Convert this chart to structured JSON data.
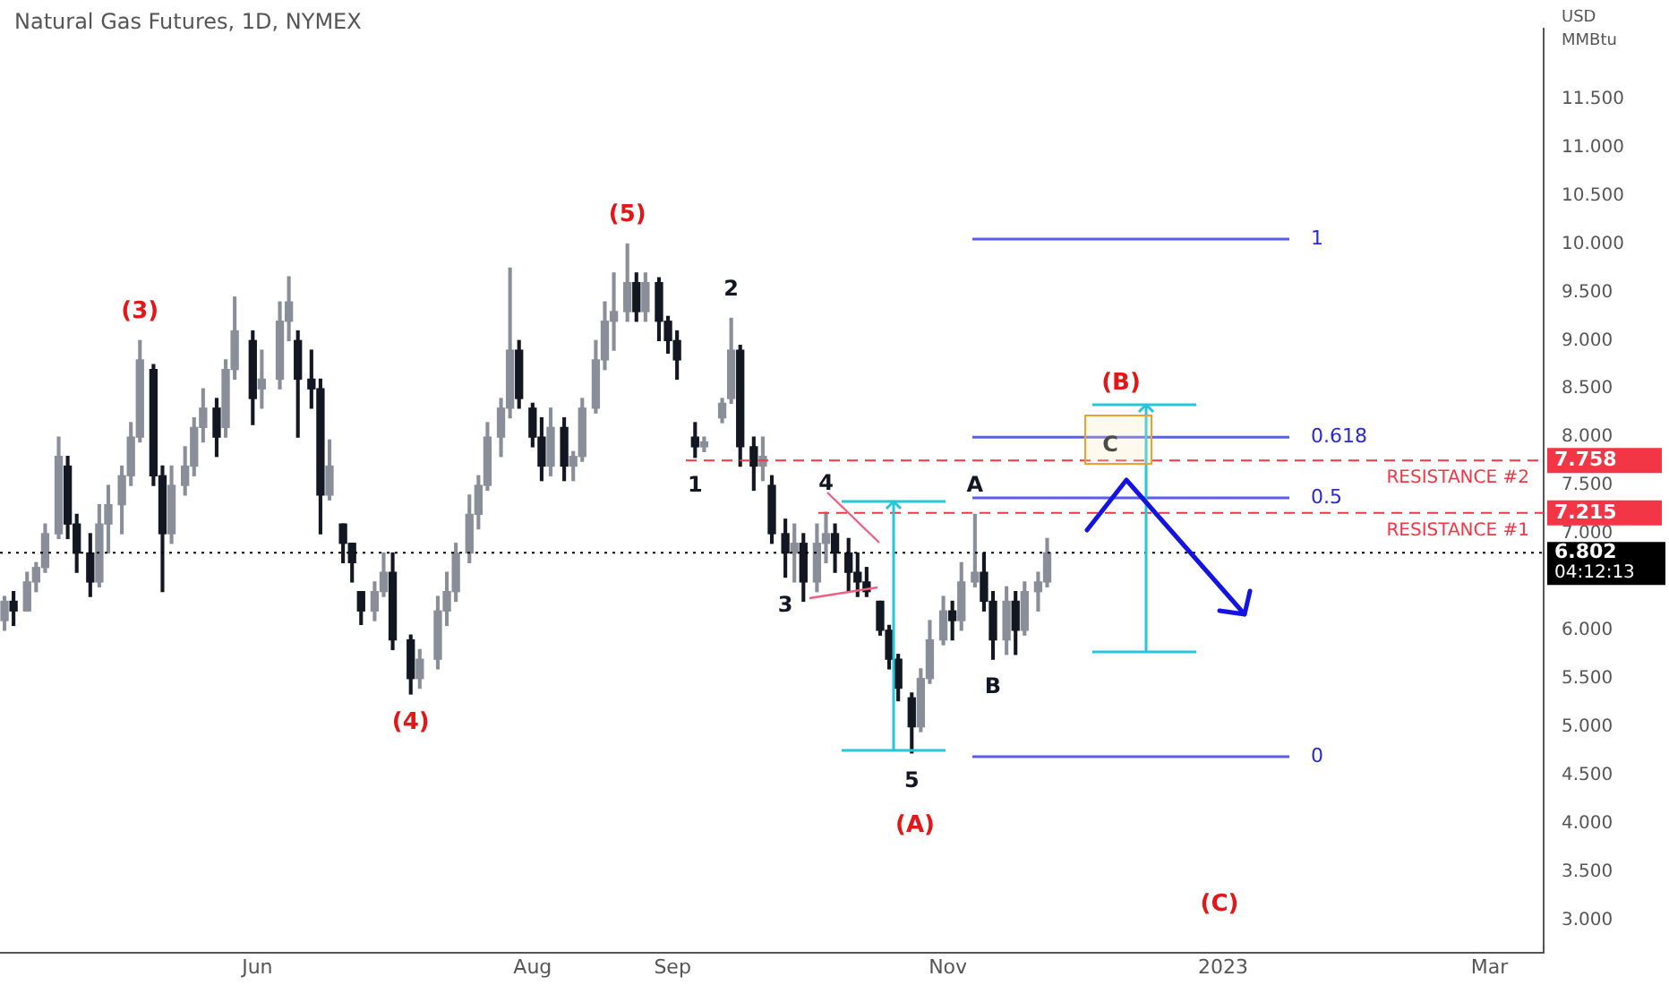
{
  "chart_data": {
    "type": "candlestick",
    "title": "Natural Gas Futures, 1D, NYMEX",
    "ylabel": "USD MMBtu",
    "x": [
      "2022-04-06",
      "2022-04-08",
      "2022-04-11",
      "2022-04-13",
      "2022-04-15",
      "2022-04-18",
      "2022-04-20",
      "2022-04-22",
      "2022-04-25",
      "2022-04-27",
      "2022-04-29",
      "2022-05-02",
      "2022-05-04",
      "2022-05-06",
      "2022-05-09",
      "2022-05-11",
      "2022-05-13",
      "2022-05-16",
      "2022-05-18",
      "2022-05-20",
      "2022-05-23",
      "2022-05-25",
      "2022-05-27",
      "2022-05-31",
      "2022-06-02",
      "2022-06-06",
      "2022-06-08",
      "2022-06-10",
      "2022-06-13",
      "2022-06-15",
      "2022-06-17",
      "2022-06-20",
      "2022-06-22",
      "2022-06-24",
      "2022-06-27",
      "2022-06-29",
      "2022-07-01",
      "2022-07-05",
      "2022-07-07",
      "2022-07-11",
      "2022-07-13",
      "2022-07-15",
      "2022-07-18",
      "2022-07-20",
      "2022-07-22",
      "2022-07-25",
      "2022-07-27",
      "2022-07-29",
      "2022-08-01",
      "2022-08-03",
      "2022-08-05",
      "2022-08-08",
      "2022-08-10",
      "2022-08-12",
      "2022-08-15",
      "2022-08-17",
      "2022-08-19",
      "2022-08-22",
      "2022-08-24",
      "2022-08-26",
      "2022-08-29",
      "2022-08-31",
      "2022-09-02",
      "2022-09-06",
      "2022-09-08",
      "2022-09-12",
      "2022-09-14",
      "2022-09-16",
      "2022-09-19",
      "2022-09-21",
      "2022-09-23",
      "2022-09-26",
      "2022-09-28",
      "2022-09-30",
      "2022-10-03",
      "2022-10-05",
      "2022-10-07",
      "2022-10-10",
      "2022-10-12",
      "2022-10-14",
      "2022-10-17",
      "2022-10-19",
      "2022-10-21",
      "2022-10-24",
      "2022-10-26",
      "2022-10-28",
      "2022-10-31",
      "2022-11-02",
      "2022-11-04",
      "2022-11-07",
      "2022-11-09",
      "2022-11-11",
      "2022-11-14",
      "2022-11-16",
      "2022-11-18",
      "2022-11-21",
      "2022-11-23"
    ],
    "ohlc": [
      [
        6.1,
        6.35,
        6.0,
        6.3
      ],
      [
        6.3,
        6.4,
        6.05,
        6.2
      ],
      [
        6.2,
        6.6,
        6.2,
        6.5
      ],
      [
        6.5,
        6.7,
        6.4,
        6.65
      ],
      [
        6.65,
        7.1,
        6.6,
        7.0
      ],
      [
        7.0,
        8.0,
        6.95,
        7.8
      ],
      [
        7.7,
        7.8,
        6.95,
        7.1
      ],
      [
        7.1,
        7.2,
        6.6,
        6.8
      ],
      [
        6.8,
        7.0,
        6.35,
        6.5
      ],
      [
        6.5,
        7.3,
        6.45,
        7.1
      ],
      [
        7.1,
        7.5,
        6.8,
        7.3
      ],
      [
        7.3,
        7.7,
        7.0,
        7.6
      ],
      [
        7.6,
        8.15,
        7.5,
        8.0
      ],
      [
        8.0,
        9.0,
        7.95,
        8.8
      ],
      [
        8.7,
        8.75,
        7.5,
        7.6
      ],
      [
        7.6,
        7.7,
        6.4,
        7.0
      ],
      [
        7.0,
        7.7,
        6.9,
        7.5
      ],
      [
        7.5,
        7.9,
        7.4,
        7.7
      ],
      [
        7.7,
        8.2,
        7.6,
        8.1
      ],
      [
        8.1,
        8.5,
        7.95,
        8.3
      ],
      [
        8.3,
        8.4,
        7.8,
        8.0
      ],
      [
        8.1,
        8.8,
        8.0,
        8.7
      ],
      [
        8.7,
        9.45,
        8.6,
        9.1
      ],
      [
        9.0,
        9.1,
        8.13,
        8.4
      ],
      [
        8.5,
        8.9,
        8.3,
        8.6
      ],
      [
        8.6,
        9.4,
        8.5,
        9.2
      ],
      [
        9.2,
        9.66,
        9.0,
        9.4
      ],
      [
        9.0,
        9.1,
        8.0,
        8.6
      ],
      [
        8.6,
        8.9,
        8.3,
        8.5
      ],
      [
        8.5,
        8.6,
        7.0,
        7.4
      ],
      [
        7.4,
        7.97,
        7.35,
        7.7
      ],
      [
        7.1,
        7.1,
        6.7,
        6.9
      ],
      [
        6.9,
        6.9,
        6.5,
        6.7
      ],
      [
        6.4,
        6.4,
        6.06,
        6.2
      ],
      [
        6.2,
        6.5,
        6.1,
        6.4
      ],
      [
        6.4,
        6.8,
        6.35,
        6.6
      ],
      [
        6.6,
        6.8,
        5.8,
        5.9
      ],
      [
        5.9,
        5.95,
        5.34,
        5.5
      ],
      [
        5.5,
        5.8,
        5.4,
        5.7
      ],
      [
        5.7,
        6.35,
        5.6,
        6.2
      ],
      [
        6.2,
        6.6,
        6.05,
        6.4
      ],
      [
        6.4,
        6.9,
        6.3,
        6.8
      ],
      [
        6.8,
        7.4,
        6.7,
        7.2
      ],
      [
        7.2,
        7.6,
        7.05,
        7.5
      ],
      [
        7.5,
        8.15,
        7.45,
        8.0
      ],
      [
        8.0,
        8.4,
        7.8,
        8.3
      ],
      [
        8.3,
        9.75,
        8.2,
        8.9
      ],
      [
        8.9,
        9.0,
        8.3,
        8.4
      ],
      [
        8.3,
        8.35,
        7.9,
        8.0
      ],
      [
        8.0,
        8.2,
        7.55,
        7.7
      ],
      [
        7.7,
        8.3,
        7.6,
        8.1
      ],
      [
        8.1,
        8.2,
        7.55,
        7.7
      ],
      [
        7.7,
        7.85,
        7.55,
        7.8
      ],
      [
        7.8,
        8.4,
        7.75,
        8.3
      ],
      [
        8.3,
        9.0,
        8.25,
        8.8
      ],
      [
        8.8,
        9.4,
        8.7,
        9.2
      ],
      [
        9.2,
        9.7,
        8.9,
        9.3
      ],
      [
        9.3,
        10.0,
        9.2,
        9.6
      ],
      [
        9.6,
        9.7,
        9.2,
        9.3
      ],
      [
        9.3,
        9.7,
        9.2,
        9.6
      ],
      [
        9.6,
        9.65,
        9.0,
        9.2
      ],
      [
        9.2,
        9.25,
        8.87,
        9.0
      ],
      [
        9.0,
        9.1,
        8.6,
        8.8
      ],
      [
        8.0,
        8.15,
        7.79,
        7.9
      ],
      [
        7.9,
        8.0,
        7.85,
        7.95
      ],
      [
        8.2,
        8.4,
        8.15,
        8.35
      ],
      [
        8.4,
        9.23,
        8.35,
        8.9
      ],
      [
        8.9,
        8.95,
        7.7,
        7.9
      ],
      [
        7.9,
        8.0,
        7.45,
        7.7
      ],
      [
        7.7,
        8.0,
        7.55,
        7.8
      ],
      [
        7.5,
        7.6,
        6.9,
        7.0
      ],
      [
        7.0,
        7.15,
        6.55,
        6.8
      ],
      [
        6.8,
        7.1,
        6.5,
        6.9
      ],
      [
        6.9,
        7.0,
        6.3,
        6.5
      ],
      [
        6.5,
        7.1,
        6.4,
        6.9
      ],
      [
        6.9,
        7.22,
        6.7,
        7.0
      ],
      [
        7.0,
        7.1,
        6.6,
        6.8
      ],
      [
        6.8,
        6.95,
        6.4,
        6.6
      ],
      [
        6.6,
        6.8,
        6.35,
        6.5
      ],
      [
        6.5,
        6.65,
        6.35,
        6.4
      ],
      [
        6.3,
        6.3,
        5.95,
        6.0
      ],
      [
        6.0,
        6.05,
        5.6,
        5.7
      ],
      [
        5.7,
        5.75,
        5.27,
        5.4
      ],
      [
        5.3,
        5.35,
        4.73,
        5.0
      ],
      [
        5.0,
        5.6,
        4.95,
        5.5
      ],
      [
        5.5,
        6.1,
        5.45,
        5.9
      ],
      [
        5.9,
        6.35,
        5.85,
        6.2
      ],
      [
        6.2,
        6.3,
        5.9,
        6.1
      ],
      [
        6.1,
        6.7,
        6.0,
        6.5
      ],
      [
        6.5,
        7.2,
        6.45,
        6.6
      ],
      [
        6.6,
        6.8,
        6.2,
        6.3
      ],
      [
        6.3,
        6.4,
        5.7,
        5.9
      ],
      [
        5.9,
        6.45,
        5.75,
        6.3
      ],
      [
        6.3,
        6.4,
        5.75,
        6.0
      ],
      [
        6.0,
        6.5,
        5.95,
        6.4
      ],
      [
        6.4,
        6.6,
        6.2,
        6.5
      ],
      [
        6.5,
        6.95,
        6.45,
        6.802
      ]
    ],
    "colors": [
      "#8a8e99",
      "#131722",
      "#8a8e99",
      "#8a8e99",
      "#8a8e99",
      "#8a8e99",
      "#131722",
      "#131722",
      "#131722",
      "#8a8e99",
      "#8a8e99",
      "#8a8e99",
      "#8a8e99",
      "#8a8e99",
      "#131722",
      "#131722",
      "#8a8e99",
      "#8a8e99",
      "#8a8e99",
      "#8a8e99",
      "#131722",
      "#8a8e99",
      "#8a8e99",
      "#131722",
      "#8a8e99",
      "#8a8e99",
      "#8a8e99",
      "#131722",
      "#131722",
      "#131722",
      "#8a8e99",
      "#131722",
      "#131722",
      "#131722",
      "#8a8e99",
      "#8a8e99",
      "#131722",
      "#131722",
      "#8a8e99",
      "#8a8e99",
      "#8a8e99",
      "#8a8e99",
      "#8a8e99",
      "#8a8e99",
      "#8a8e99",
      "#8a8e99",
      "#8a8e99",
      "#131722",
      "#131722",
      "#131722",
      "#8a8e99",
      "#131722",
      "#8a8e99",
      "#8a8e99",
      "#8a8e99",
      "#8a8e99",
      "#8a8e99",
      "#8a8e99",
      "#131722",
      "#8a8e99",
      "#131722",
      "#131722",
      "#131722",
      "#131722",
      "#8a8e99",
      "#8a8e99",
      "#8a8e99",
      "#131722",
      "#131722",
      "#8a8e99",
      "#131722",
      "#131722",
      "#8a8e99",
      "#131722",
      "#8a8e99",
      "#8a8e99",
      "#131722",
      "#131722",
      "#131722",
      "#131722",
      "#131722",
      "#131722",
      "#131722",
      "#131722",
      "#8a8e99",
      "#8a8e99",
      "#8a8e99",
      "#131722",
      "#8a8e99",
      "#8a8e99",
      "#131722",
      "#131722",
      "#8a8e99",
      "#131722",
      "#8a8e99",
      "#8a8e99",
      "#8a8e99"
    ],
    "xlim": [
      "2022-04-05",
      "2023-03-13"
    ],
    "xticks": [
      {
        "value": "2022-06-01",
        "label": "Jun"
      },
      {
        "value": "2022-08-01",
        "label": "Aug"
      },
      {
        "value": "2022-09-01",
        "label": "Sep"
      },
      {
        "value": "2022-11-01",
        "label": "Nov"
      },
      {
        "value": "2023-01-01",
        "label": "2023"
      },
      {
        "value": "2023-03-01",
        "label": "Mar"
      }
    ],
    "ylim": [
      2.66,
      12.23
    ],
    "yticks": [
      {
        "value": 3,
        "label": "3.000"
      },
      {
        "value": 3.5,
        "label": "3.500"
      },
      {
        "value": 4,
        "label": "4.000"
      },
      {
        "value": 4.5,
        "label": "4.500"
      },
      {
        "value": 5,
        "label": "5.000"
      },
      {
        "value": 5.5,
        "label": "5.500"
      },
      {
        "value": 6,
        "label": "6.000"
      },
      {
        "value": 7,
        "label": "7.000"
      },
      {
        "value": 7.5,
        "label": "7.500"
      },
      {
        "value": 8,
        "label": "8.000"
      },
      {
        "value": 8.5,
        "label": "8.500"
      },
      {
        "value": 9,
        "label": "9.000"
      },
      {
        "value": 9.5,
        "label": "9.500"
      },
      {
        "value": 10,
        "label": "10.000"
      },
      {
        "value": 10.5,
        "label": "10.500"
      },
      {
        "value": 11,
        "label": "11.000"
      },
      {
        "value": 11.5,
        "label": "11.500"
      }
    ],
    "ref_lines": [
      {
        "axis": "y",
        "value": 10.05,
        "color": "#5b5bf0",
        "line_style": "solid"
      },
      {
        "axis": "y",
        "value": 8.0,
        "color": "#5b5bf0",
        "line_style": "solid"
      },
      {
        "axis": "y",
        "value": 7.37,
        "color": "#5b5bf0",
        "line_style": "solid"
      },
      {
        "axis": "y",
        "value": 4.69,
        "color": "#5b5bf0",
        "line_style": "solid"
      },
      {
        "axis": "y",
        "value": 7.758,
        "label": "RESISTANCE #2",
        "color": "#f23645",
        "line_style": "dashed"
      },
      {
        "axis": "y",
        "value": 7.215,
        "label": "RESISTANCE #1",
        "color": "#f23645",
        "line_style": "dashed"
      },
      {
        "axis": "y",
        "value": 6.802,
        "color": "#000000",
        "line_style": "dotted"
      }
    ],
    "annotations": [
      {
        "text": "(3)",
        "x": "2022-05-06",
        "y": 9.0
      },
      {
        "text": "(4)",
        "x": "2022-07-05",
        "y": 5.34
      },
      {
        "text": "(5)",
        "x": "2022-08-22",
        "y": 10.0
      },
      {
        "text": "1",
        "x": "2022-09-06",
        "y": 7.79
      },
      {
        "text": "2",
        "x": "2022-09-14",
        "y": 9.23
      },
      {
        "text": "3",
        "x": "2022-09-26",
        "y": 6.55
      },
      {
        "text": "4",
        "x": "2022-10-05",
        "y": 7.22
      },
      {
        "text": "5",
        "x": "2022-10-24",
        "y": 4.73
      },
      {
        "text": "A",
        "x": "2022-11-07",
        "y": 7.2
      },
      {
        "text": "B",
        "x": "2022-11-11",
        "y": 5.7
      },
      "1",
      "0.618",
      "0.5",
      "0",
      "7.758",
      "7.215",
      "6.802",
      "04:12:13",
      "C",
      "(B)",
      "(C)",
      "(A)"
    ],
    "grid": false,
    "legend": false
  }
}
